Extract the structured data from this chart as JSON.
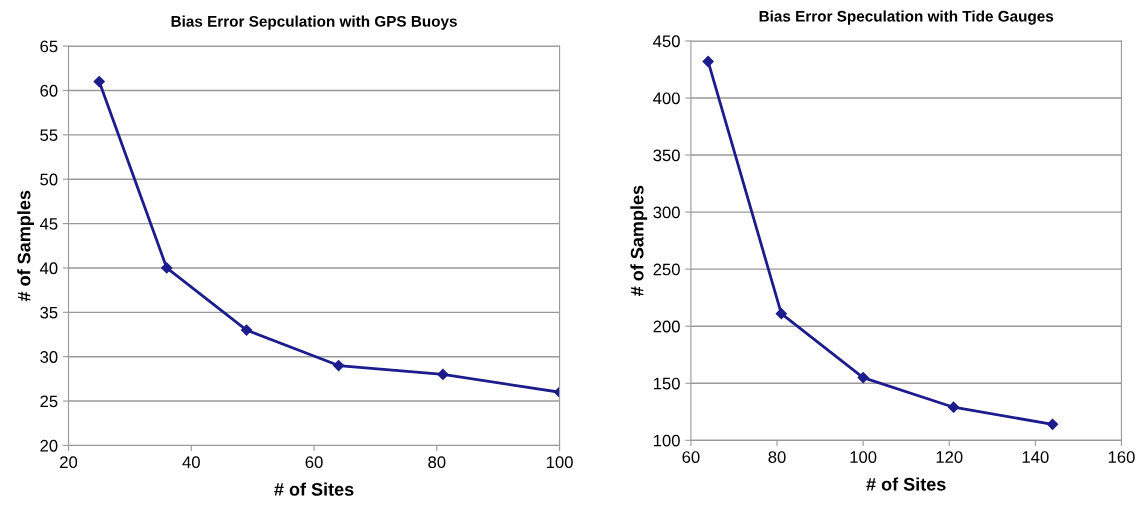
{
  "chart_data": [
    {
      "type": "line",
      "title": "Bias Error Sepculation with GPS Buoys",
      "xlabel": "# of Sites",
      "ylabel": "# of Samples",
      "x": [
        25,
        36,
        49,
        64,
        81,
        100
      ],
      "series": [
        {
          "color": "#1c1c8c",
          "values": [
            61,
            40,
            33,
            29,
            28,
            26
          ]
        }
      ],
      "xlim": [
        20,
        100
      ],
      "xticks": [
        20,
        40,
        60,
        80,
        100
      ],
      "ylim": [
        20,
        65
      ],
      "yticks": [
        20,
        25,
        30,
        35,
        40,
        45,
        50,
        55,
        60,
        65
      ],
      "grid": "y",
      "marker": "diamond",
      "line_style": "solid"
    },
    {
      "type": "line",
      "title": "Bias Error Speculation with Tide Gauges",
      "xlabel": "# of Sites",
      "ylabel": "# of Samples",
      "x": [
        64,
        81,
        100,
        121,
        144
      ],
      "series": [
        {
          "color": "#1c1c8c",
          "values": [
            432,
            211,
            155,
            129,
            114
          ]
        }
      ],
      "xlim": [
        60,
        160
      ],
      "xticks": [
        60,
        80,
        100,
        120,
        140,
        160
      ],
      "ylim": [
        100,
        450
      ],
      "yticks": [
        100,
        150,
        200,
        250,
        300,
        350,
        400,
        450
      ],
      "grid": "y",
      "marker": "diamond",
      "line_style": "solid"
    }
  ]
}
